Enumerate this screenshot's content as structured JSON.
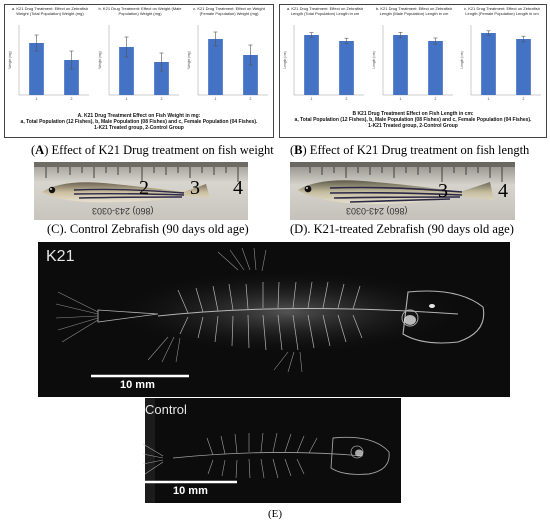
{
  "panelA": {
    "charts": [
      {
        "title": "a. K21 Drug Treatment: Effect on Zebrafish Weight (Total Population) Weight (mg)",
        "ylabel": "Weight (mg)",
        "categories": [
          "1",
          "2"
        ],
        "values": [
          520,
          350
        ],
        "errors": [
          80,
          90
        ],
        "ylim": [
          0,
          700
        ]
      },
      {
        "title": "b. K21 Drug Treatment: Effect on Weight (Male Population) Weight (mg)",
        "ylabel": "Weight (mg)",
        "categories": [
          "1",
          "2"
        ],
        "values": [
          480,
          330
        ],
        "errors": [
          100,
          90
        ],
        "ylim": [
          0,
          700
        ]
      },
      {
        "title": "c. K21 Drug Treatment: Effect on Weight (Female Population) Weight (mg)",
        "ylabel": "Weight (mg)",
        "categories": [
          "1",
          "2"
        ],
        "values": [
          560,
          400
        ],
        "errors": [
          70,
          100
        ],
        "ylim": [
          0,
          700
        ]
      }
    ],
    "caption_lines": [
      "A. K21 Drug Treatment Effect on Fish Weight in mg:",
      "a, Total Population (12 Fishes), b, Male Population (08 Fishes) and c, Female Population (04 Fishes).",
      "1-K21 Treated group, 2-Control Group"
    ],
    "figure_caption_letter": "A",
    "figure_caption_text": ") Effect of K21 Drug treatment on fish weight"
  },
  "panelB": {
    "charts": [
      {
        "title": "a. K21 Drug Treatment: Effect on Zebrafish Length (Total Population) Length in cm",
        "ylabel": "Length (cm)",
        "categories": [
          "1",
          "2"
        ],
        "values": [
          3.0,
          2.7
        ],
        "errors": [
          0.12,
          0.14
        ],
        "ylim": [
          0,
          3.5
        ]
      },
      {
        "title": "b. K21 Drug Treatment: Effect on Zebrafish Length (Male Population) Length in cm",
        "ylabel": "Length (cm)",
        "categories": [
          "1",
          "2"
        ],
        "values": [
          3.0,
          2.7
        ],
        "errors": [
          0.13,
          0.15
        ],
        "ylim": [
          0,
          3.5
        ]
      },
      {
        "title": "c. K21 Drug Treatment: Effect on Zebrafish Length (Female Population) Length in cm",
        "ylabel": "Length (cm)",
        "categories": [
          "1",
          "2"
        ],
        "values": [
          3.1,
          2.8
        ],
        "errors": [
          0.11,
          0.14
        ],
        "ylim": [
          0,
          3.5
        ]
      }
    ],
    "caption_lines": [
      "B K21 Drug Treatment Effect on Fish Length in cm:",
      "a, Total Population (12 Fishes), b, Male Population (08 Fishes) and c, Female Population (04 Fishes).",
      "1-K21 Treated group, 2-Control Group"
    ],
    "figure_caption_letter": "B",
    "figure_caption_text": ") Effect of K21 Drug treatment on fish length"
  },
  "panelC": {
    "ruler_numbers": [
      "2",
      "3",
      "4"
    ],
    "ruler_text": "(860) 243-0303",
    "caption": "(C). Control Zebrafish (90 days old age)"
  },
  "panelD": {
    "ruler_numbers": [
      "3",
      "4"
    ],
    "ruler_text": "(860) 243-0303",
    "caption": "(D). K21-treated Zebrafish (90 days old age)"
  },
  "panelE": {
    "k21_label": "K21",
    "control_label": "Control",
    "scale_label": "10 mm",
    "caption": "(E)"
  },
  "chart_data": [
    {
      "type": "bar",
      "title": "a. K21 Drug Treatment: Effect on Zebrafish Weight (Total Population) Weight (mg)",
      "categories": [
        "1",
        "2"
      ],
      "values": [
        520,
        350
      ],
      "ylabel": "Weight (mg)",
      "ylim": [
        0,
        700
      ]
    },
    {
      "type": "bar",
      "title": "b. K21 Drug Treatment: Effect on Weight (Male Population) Weight (mg)",
      "categories": [
        "1",
        "2"
      ],
      "values": [
        480,
        330
      ],
      "ylabel": "Weight (mg)",
      "ylim": [
        0,
        700
      ]
    },
    {
      "type": "bar",
      "title": "c. K21 Drug Treatment: Effect on Weight (Female Population) Weight (mg)",
      "categories": [
        "1",
        "2"
      ],
      "values": [
        560,
        400
      ],
      "ylabel": "Weight (mg)",
      "ylim": [
        0,
        700
      ]
    },
    {
      "type": "bar",
      "title": "a. K21 Drug Treatment: Effect on Zebrafish Length (Total Population) Length in cm",
      "categories": [
        "1",
        "2"
      ],
      "values": [
        3.0,
        2.7
      ],
      "ylabel": "Length (cm)",
      "ylim": [
        0,
        3.5
      ]
    },
    {
      "type": "bar",
      "title": "b. K21 Drug Treatment: Effect on Zebrafish Length (Male Population) Length in cm",
      "categories": [
        "1",
        "2"
      ],
      "values": [
        3.0,
        2.7
      ],
      "ylabel": "Length (cm)",
      "ylim": [
        0,
        3.5
      ]
    },
    {
      "type": "bar",
      "title": "c. K21 Drug Treatment: Effect on Zebrafish Length (Female Population) Length in cm",
      "categories": [
        "1",
        "2"
      ],
      "values": [
        3.1,
        2.8
      ],
      "ylabel": "Length (cm)",
      "ylim": [
        0,
        3.5
      ]
    }
  ],
  "colors": {
    "bar": "#4472c4",
    "error": "#555555",
    "xray_bg": "#0c0c0c"
  }
}
